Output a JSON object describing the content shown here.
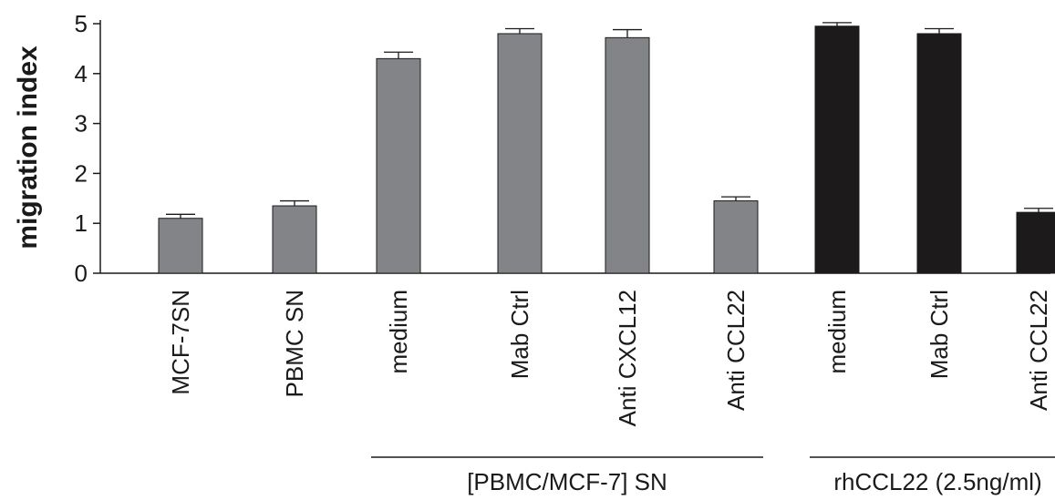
{
  "chart_data": {
    "type": "bar",
    "title": "",
    "xlabel": "",
    "ylabel": "migration index",
    "ylim": [
      0,
      5
    ],
    "yticks": [
      0,
      1,
      2,
      3,
      4,
      5
    ],
    "grid": false,
    "categories": [
      "MCF-7SN",
      "PBMC SN",
      "medium",
      "Mab Ctrl",
      "Anti CXCL12",
      "Anti CCL22",
      "medium",
      "Mab Ctrl",
      "Anti CCL22"
    ],
    "values": [
      1.1,
      1.35,
      4.3,
      4.8,
      4.72,
      1.45,
      4.95,
      4.8,
      1.22
    ],
    "errors": [
      0.08,
      0.1,
      0.13,
      0.1,
      0.16,
      0.08,
      0.07,
      0.1,
      0.08
    ],
    "colors": [
      "#838487",
      "#838487",
      "#838487",
      "#838487",
      "#838487",
      "#838487",
      "#1c1a1b",
      "#1c1a1b",
      "#1c1a1b"
    ],
    "groups": [
      {
        "label": "[PBMC/MCF-7] SN",
        "start": 2,
        "end": 5
      },
      {
        "label": "rhCCL22 (2.5ng/ml)",
        "start": 6,
        "end": 8
      }
    ]
  }
}
